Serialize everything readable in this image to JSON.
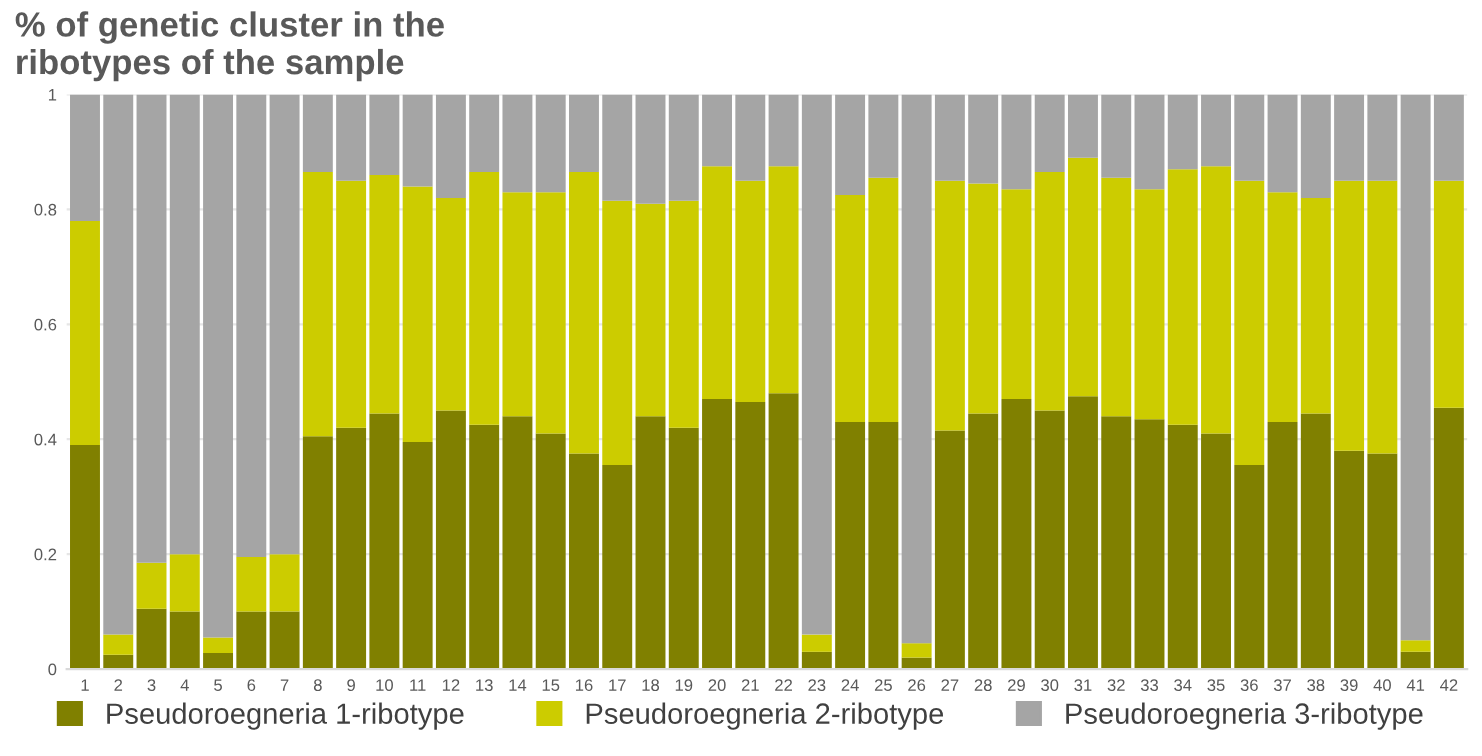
{
  "chart_data": {
    "type": "bar",
    "title": "% of genetic cluster in the\nribotypes of the sample",
    "stacked": true,
    "categories": [
      "1",
      "2",
      "3",
      "4",
      "5",
      "6",
      "7",
      "8",
      "9",
      "10",
      "11",
      "12",
      "13",
      "14",
      "15",
      "16",
      "17",
      "18",
      "19",
      "20",
      "21",
      "22",
      "23",
      "24",
      "25",
      "26",
      "27",
      "28",
      "29",
      "30",
      "31",
      "32",
      "33",
      "34",
      "35",
      "36",
      "37",
      "38",
      "39",
      "40",
      "41",
      "42"
    ],
    "series": [
      {
        "name": "Pseudoroegneria 1-ribotype",
        "color": "#808000",
        "values": [
          0.39,
          0.025,
          0.105,
          0.1,
          0.028,
          0.1,
          0.1,
          0.405,
          0.42,
          0.445,
          0.395,
          0.45,
          0.425,
          0.44,
          0.41,
          0.375,
          0.355,
          0.44,
          0.42,
          0.47,
          0.465,
          0.48,
          0.03,
          0.43,
          0.43,
          0.02,
          0.415,
          0.445,
          0.47,
          0.45,
          0.475,
          0.44,
          0.435,
          0.425,
          0.41,
          0.355,
          0.43,
          0.445,
          0.38,
          0.375,
          0.03,
          0.455
        ]
      },
      {
        "name": "Pseudoroegneria 2-ribotype",
        "color": "#cccc00",
        "values": [
          0.39,
          0.035,
          0.08,
          0.1,
          0.027,
          0.095,
          0.1,
          0.46,
          0.43,
          0.415,
          0.445,
          0.37,
          0.44,
          0.39,
          0.42,
          0.49,
          0.46,
          0.37,
          0.395,
          0.405,
          0.385,
          0.395,
          0.03,
          0.395,
          0.425,
          0.025,
          0.435,
          0.4,
          0.365,
          0.415,
          0.415,
          0.415,
          0.4,
          0.445,
          0.465,
          0.495,
          0.4,
          0.375,
          0.47,
          0.475,
          0.02,
          0.395
        ]
      },
      {
        "name": "Pseudoroegneria 3-ribotype",
        "color": "#a5a5a5",
        "values": [
          0.22,
          0.94,
          0.815,
          0.8,
          0.945,
          0.805,
          0.8,
          0.135,
          0.15,
          0.14,
          0.16,
          0.18,
          0.135,
          0.17,
          0.17,
          0.135,
          0.185,
          0.19,
          0.185,
          0.125,
          0.15,
          0.125,
          0.94,
          0.175,
          0.145,
          0.955,
          0.15,
          0.155,
          0.165,
          0.135,
          0.11,
          0.145,
          0.165,
          0.13,
          0.125,
          0.15,
          0.17,
          0.18,
          0.15,
          0.15,
          0.95,
          0.15
        ]
      }
    ],
    "ylim": [
      0,
      1
    ],
    "yticks": [
      0,
      0.2,
      0.4,
      0.6,
      0.8,
      1
    ],
    "grid": "y",
    "legend": "bottom"
  }
}
